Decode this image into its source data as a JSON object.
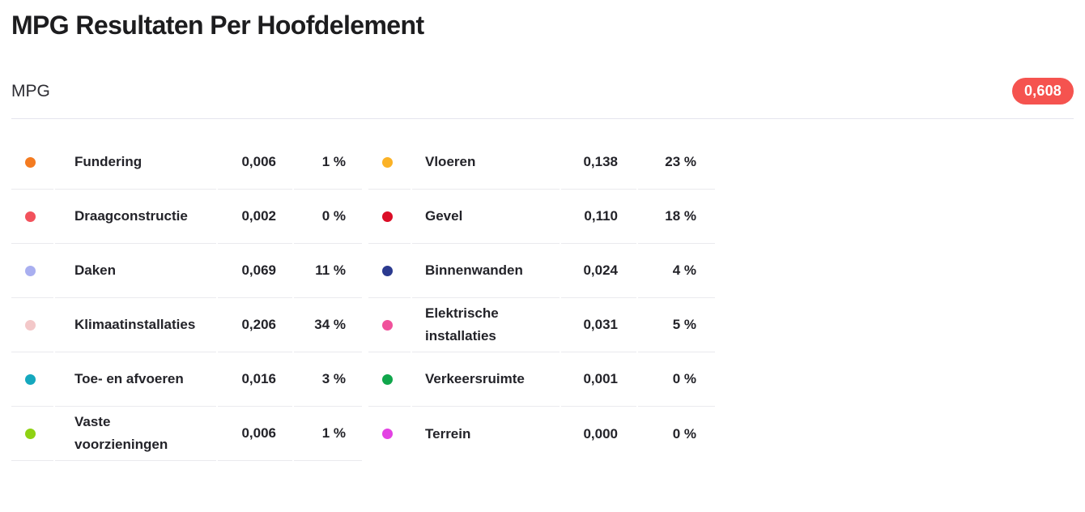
{
  "header": {
    "title": "MPG Resultaten Per Hoofdelement"
  },
  "summary": {
    "label": "MPG",
    "badge_value": "0,608",
    "badge_color": "#f5534f"
  },
  "tables": {
    "left": {
      "rows": [
        {
          "label": "Fundering",
          "value": "0,006",
          "percent": "1 %",
          "color": "#f47b20"
        },
        {
          "label": "Draagconstructie",
          "value": "0,002",
          "percent": "0 %",
          "color": "#f2525c"
        },
        {
          "label": "Daken",
          "value": "0,069",
          "percent": "11 %",
          "color": "#a9aff0"
        },
        {
          "label": "Klimaatinstallaties",
          "value": "0,206",
          "percent": "34 %",
          "color": "#f3c8c9"
        },
        {
          "label": "Toe- en afvoeren",
          "value": "0,016",
          "percent": "3 %",
          "color": "#15a8be"
        },
        {
          "label": "Vaste\nvoorzieningen",
          "value": "0,006",
          "percent": "1 %",
          "color": "#8fd213"
        }
      ]
    },
    "right": {
      "rows": [
        {
          "label": "Vloeren",
          "value": "0,138",
          "percent": "23 %",
          "color": "#fbb226"
        },
        {
          "label": "Gevel",
          "value": "0,110",
          "percent": "18 %",
          "color": "#db0d26"
        },
        {
          "label": "Binnenwanden",
          "value": "0,024",
          "percent": "4 %",
          "color": "#2b3a8f"
        },
        {
          "label": "Elektrische\ninstallaties",
          "value": "0,031",
          "percent": "5 %",
          "color": "#f0519b"
        },
        {
          "label": "Verkeersruimte",
          "value": "0,001",
          "percent": "0 %",
          "color": "#10a64b"
        },
        {
          "label": "Terrein",
          "value": "0,000",
          "percent": "0 %",
          "color": "#e342e3"
        }
      ]
    }
  }
}
